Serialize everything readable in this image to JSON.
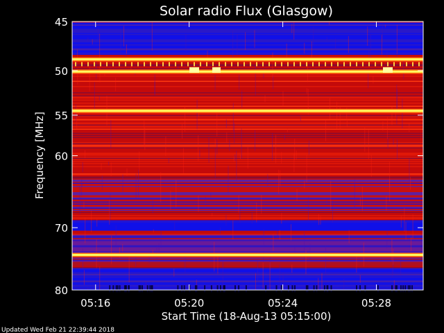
{
  "chart_data": {
    "type": "heatmap",
    "title": "Solar radio Flux (Glasgow)",
    "xlabel": "Start Time (18-Aug-13 05:15:00)",
    "ylabel": "Frequency [MHz]",
    "x_ticks": [
      "05:16",
      "05:20",
      "05:24",
      "05:28"
    ],
    "x_tick_minutes": [
      1,
      5,
      9,
      13
    ],
    "xlim_minutes": [
      0,
      15
    ],
    "y_ticks": [
      "45",
      "50",
      "55",
      "60",
      "70",
      "80"
    ],
    "y_tick_values": [
      45,
      50,
      55,
      60,
      70,
      80
    ],
    "ylim": [
      45,
      80
    ],
    "y_scale": "log",
    "colormap": "blue-red-yellow",
    "background": "#000000",
    "bright_bands_mhz": [
      48.8,
      50.1,
      54.5,
      74.2
    ],
    "blue_bands_mhz": [
      [
        45,
        48.3
      ],
      [
        68.8,
        70.4
      ],
      [
        76.2,
        80
      ]
    ]
  },
  "footer": {
    "updated": "Updated Wed Feb 21 22:39:44 2018"
  }
}
